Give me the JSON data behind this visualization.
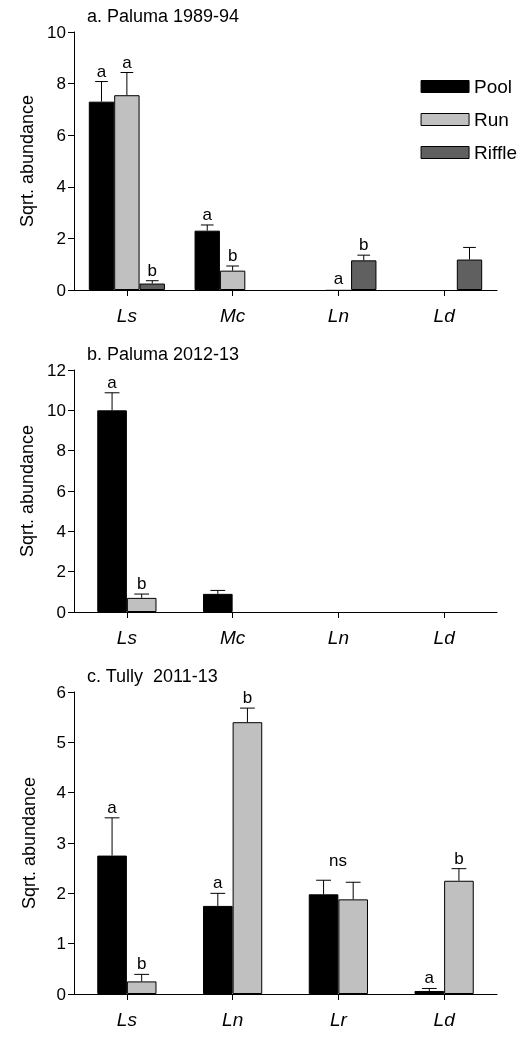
{
  "chart_data": [
    {
      "type": "bar",
      "title": "a. Paluma 1989-94",
      "ylabel": "Sqrt. abundance",
      "categories": [
        "Ls",
        "Mc",
        "Ln",
        "Ld"
      ],
      "ylim": [
        0,
        10
      ],
      "yticks": [
        0,
        2,
        4,
        6,
        8,
        10
      ],
      "grid": false,
      "legend": "top right",
      "series": [
        {
          "name": "Pool",
          "color": "#000000",
          "values": [
            7.3,
            2.3,
            null,
            null
          ],
          "errors": [
            [
              7.3,
              8.08
            ],
            [
              2.3,
              2.52
            ],
            null,
            null
          ],
          "value_labels": [
            "a",
            "a",
            null,
            null
          ]
        },
        {
          "name": "Run",
          "color": "#c0c0c0",
          "values": [
            7.55,
            0.75,
            0.03,
            null
          ],
          "errors": [
            [
              7.55,
              8.43
            ],
            [
              0.75,
              0.93
            ],
            null,
            null
          ],
          "value_labels": [
            "a",
            "b",
            "a",
            null
          ]
        },
        {
          "name": "Riffle",
          "color": "#606060",
          "values": [
            0.25,
            null,
            1.15,
            1.18
          ],
          "errors": [
            [
              0.25,
              0.36
            ],
            null,
            [
              1.15,
              1.35
            ],
            [
              1.18,
              1.65
            ]
          ],
          "value_labels": [
            "b",
            null,
            "b",
            null
          ]
        }
      ]
    },
    {
      "type": "bar",
      "title": "b. Paluma 2012-13",
      "ylabel": "Sqrt. abundance",
      "categories": [
        "Ls",
        "Mc",
        "Ln",
        "Ld"
      ],
      "ylim": [
        0,
        12
      ],
      "yticks": [
        0,
        2,
        4,
        6,
        8,
        10,
        12
      ],
      "grid": false,
      "series": [
        {
          "color": "#000000",
          "values": [
            10,
            0.9,
            null,
            null
          ],
          "errors": [
            [
              10,
              10.87
            ],
            [
              0.9,
              1.07
            ],
            null,
            null
          ],
          "value_labels": [
            "a",
            null,
            null,
            null
          ]
        },
        {
          "color": "#c0c0c0",
          "values": [
            0.7,
            null,
            null,
            null
          ],
          "errors": [
            [
              0.7,
              0.89
            ],
            null,
            null,
            null
          ],
          "value_labels": [
            "b",
            null,
            null,
            null
          ]
        }
      ]
    },
    {
      "type": "bar",
      "title": "c. Tully  2011-13",
      "ylabel": "Sqrt. abundance",
      "categories": [
        "Ls",
        "Ln",
        "Lr",
        "Ld"
      ],
      "ylim": [
        0,
        6
      ],
      "yticks": [
        0,
        1,
        2,
        3,
        4,
        5,
        6
      ],
      "grid": false,
      "annotations": [
        "ns"
      ],
      "series": [
        {
          "color": "#000000",
          "values": [
            2.75,
            1.75,
            1.98,
            0.06
          ],
          "errors": [
            [
              2.75,
              3.5
            ],
            [
              1.75,
              2.0
            ],
            [
              1.98,
              2.26
            ],
            [
              0.06,
              0.11
            ]
          ],
          "value_labels": [
            "a",
            "a",
            null,
            "a"
          ]
        },
        {
          "color": "#c0c0c0",
          "values": [
            0.25,
            5.4,
            1.88,
            2.25
          ],
          "errors": [
            [
              0.25,
              0.39
            ],
            [
              5.4,
              5.68
            ],
            [
              1.88,
              2.22
            ],
            [
              2.25,
              2.49
            ]
          ],
          "value_labels": [
            "b",
            "b",
            null,
            "b"
          ]
        }
      ]
    }
  ]
}
